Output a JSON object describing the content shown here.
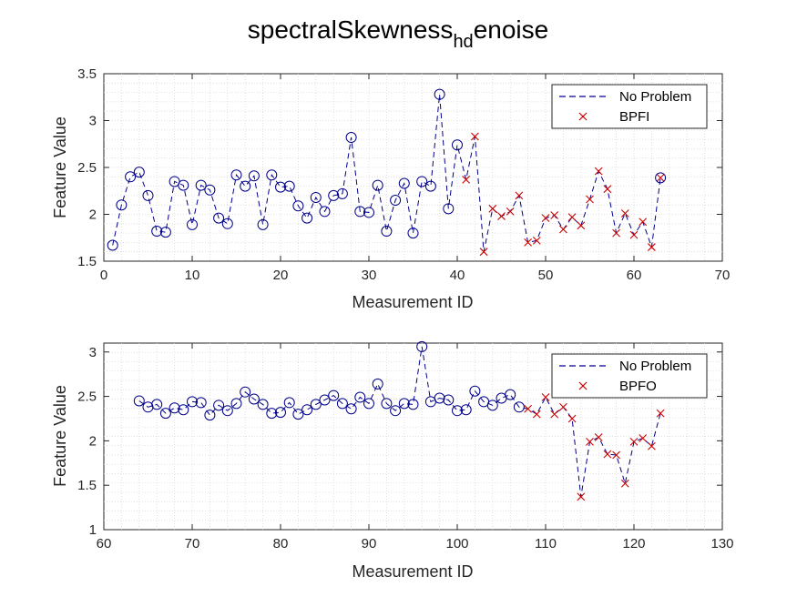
{
  "chart_data": {
    "title": {
      "main": "spectralSkewness",
      "subscript": "hd",
      "suffix": "enoise"
    },
    "colors": {
      "no_problem": "#00008B",
      "fault": "#CC0000",
      "axis": "#262626",
      "grid": "#d9d9d9"
    },
    "panels": [
      {
        "type": "line",
        "xlabel": "Measurement ID",
        "ylabel": "Feature Value",
        "xlim": [
          0,
          70
        ],
        "ylim": [
          1.5,
          3.5
        ],
        "xticks": [
          "0",
          "10",
          "20",
          "30",
          "40",
          "50",
          "60",
          "70"
        ],
        "yticks": [
          "1.5",
          "2",
          "2.5",
          "3",
          "3.5"
        ],
        "grid": true,
        "legend_position": "top-right",
        "series": [
          {
            "name": "No Problem",
            "style": "dashed-circle",
            "x": [
              1,
              2,
              3,
              4,
              5,
              6,
              7,
              8,
              9,
              10,
              11,
              12,
              13,
              14,
              15,
              16,
              17,
              18,
              19,
              20,
              21,
              22,
              23,
              24,
              25,
              26,
              27,
              28,
              29,
              30,
              31,
              32,
              33,
              34,
              35,
              36,
              37,
              38,
              39,
              40,
              41,
              42
            ],
            "y": [
              1.67,
              2.1,
              2.4,
              2.45,
              2.2,
              1.82,
              1.81,
              2.35,
              2.31,
              1.89,
              2.31,
              2.26,
              1.96,
              1.9,
              2.42,
              2.3,
              2.41,
              1.89,
              2.42,
              2.29,
              2.3,
              2.09,
              1.96,
              2.18,
              2.03,
              2.2,
              2.22,
              2.82,
              2.03,
              2.02,
              2.31,
              1.82,
              2.15,
              2.33,
              1.8,
              2.35,
              2.3,
              3.28,
              2.06,
              2.74,
              2.37,
              2.83
            ],
            "marker_x": [
              1,
              2,
              3,
              4,
              5,
              6,
              7,
              8,
              9,
              10,
              11,
              12,
              13,
              14,
              15,
              16,
              17,
              18,
              19,
              20,
              21,
              22,
              23,
              24,
              25,
              26,
              27,
              28,
              29,
              30,
              31,
              32,
              33,
              34,
              35,
              36,
              37,
              38,
              39,
              40
            ],
            "marker_y": [
              1.67,
              2.1,
              2.4,
              2.45,
              2.2,
              1.82,
              1.81,
              2.35,
              2.31,
              1.89,
              2.31,
              2.26,
              1.96,
              1.9,
              2.42,
              2.3,
              2.41,
              1.89,
              2.42,
              2.29,
              2.3,
              2.09,
              1.96,
              2.18,
              2.03,
              2.2,
              2.22,
              2.82,
              2.03,
              2.02,
              2.31,
              1.82,
              2.15,
              2.33,
              1.8,
              2.35,
              2.3,
              3.28,
              2.06,
              2.74
            ]
          },
          {
            "name": "BPFI",
            "style": "x-marker",
            "x": [
              41,
              42,
              43,
              44,
              45,
              46,
              47,
              48,
              49,
              50,
              51,
              52,
              53,
              54,
              55,
              56,
              57,
              58,
              59,
              60,
              61,
              62,
              63
            ],
            "y": [
              2.37,
              2.83,
              1.6,
              2.06,
              1.98,
              2.03,
              2.2,
              1.7,
              1.72,
              1.96,
              1.99,
              1.84,
              1.97,
              1.88,
              2.16,
              2.46,
              2.27,
              1.8,
              2.01,
              1.78,
              1.92,
              1.65,
              2.39
            ]
          },
          {
            "name": "",
            "style": "dashed-circle-continued",
            "x": [
              63
            ],
            "y": [
              2.39
            ]
          }
        ]
      },
      {
        "type": "line",
        "xlabel": "Measurement ID",
        "ylabel": "Feature Value",
        "xlim": [
          60,
          130
        ],
        "ylim": [
          1,
          3.1
        ],
        "xticks": [
          "60",
          "70",
          "80",
          "90",
          "100",
          "110",
          "120",
          "130"
        ],
        "yticks": [
          "1",
          "1.5",
          "2",
          "2.5",
          "3"
        ],
        "grid": true,
        "legend_position": "top-right",
        "series": [
          {
            "name": "No Problem",
            "style": "dashed-circle",
            "x": [
              64,
              65,
              66,
              67,
              68,
              69,
              70,
              71,
              72,
              73,
              74,
              75,
              76,
              77,
              78,
              79,
              80,
              81,
              82,
              83,
              84,
              85,
              86,
              87,
              88,
              89,
              90,
              91,
              92,
              93,
              94,
              95,
              96,
              97,
              98,
              99,
              100,
              101,
              102,
              103,
              104,
              105,
              106,
              107
            ],
            "y": [
              2.45,
              2.38,
              2.41,
              2.31,
              2.37,
              2.35,
              2.44,
              2.43,
              2.29,
              2.4,
              2.34,
              2.42,
              2.55,
              2.47,
              2.41,
              2.31,
              2.32,
              2.43,
              2.3,
              2.35,
              2.41,
              2.46,
              2.51,
              2.42,
              2.36,
              2.49,
              2.42,
              2.64,
              2.42,
              2.34,
              2.42,
              2.41,
              3.06,
              2.44,
              2.48,
              2.46,
              2.34,
              2.35,
              2.56,
              2.44,
              2.4,
              2.48,
              2.52,
              2.38
            ]
          },
          {
            "name": "BPFO",
            "style": "x-marker",
            "x": [
              108,
              109,
              110,
              111,
              112,
              113,
              114,
              115,
              116,
              117,
              118,
              119,
              120,
              121,
              122,
              123
            ],
            "y": [
              2.36,
              2.3,
              2.49,
              2.3,
              2.38,
              2.25,
              1.37,
              1.99,
              2.04,
              1.85,
              1.84,
              1.52,
              1.99,
              2.03,
              1.94,
              2.31
            ]
          }
        ]
      }
    ]
  },
  "legend": {
    "top": {
      "no_problem_label": "No Problem",
      "fault_label": "BPFI"
    },
    "bottom": {
      "no_problem_label": "No Problem",
      "fault_label": "BPFO"
    }
  }
}
